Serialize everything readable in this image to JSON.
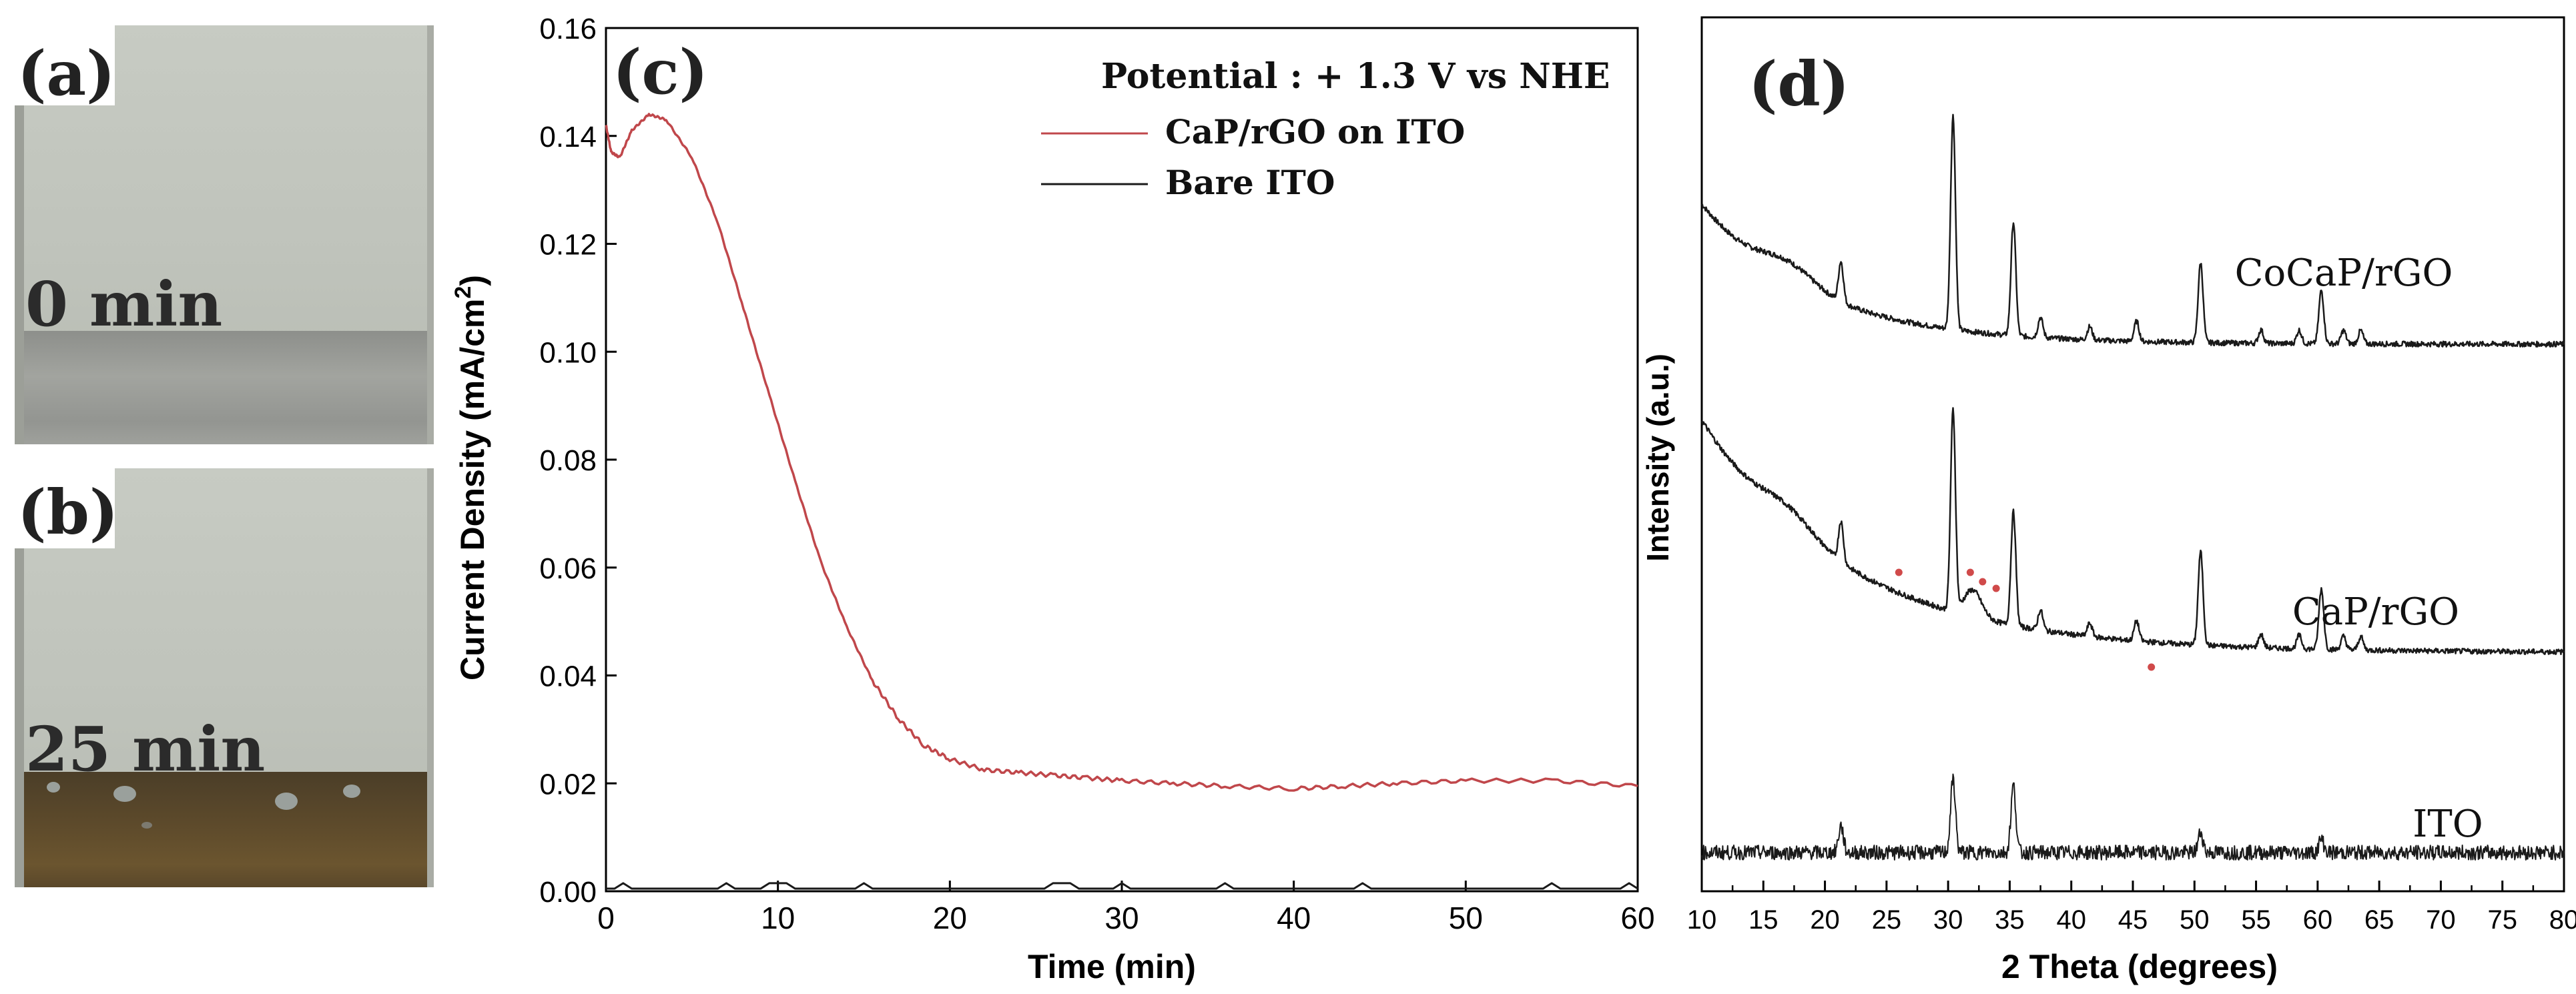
{
  "panels": {
    "a": {
      "label": "(a)",
      "time": "0 min"
    },
    "b": {
      "label": "(b)",
      "time": "25 min"
    },
    "c": {
      "label": "(c)"
    },
    "d": {
      "label": "(d)"
    }
  },
  "colors": {
    "cap_rgo_curve": "#c0474b",
    "bare_ito_curve": "#1a1a1a",
    "xrd_curve": "#1a1a1a",
    "marker": "#d04a4a",
    "axis": "#000000"
  },
  "chart_data": [
    {
      "type": "line",
      "title": "",
      "xlabel": "Time (min)",
      "ylabel": "Current Density (mA/cm²)",
      "ylabel_main": "Current Density (mA/cm",
      "ylabel_sup": "2",
      "ylabel_close": ")",
      "xlim": [
        0,
        60
      ],
      "ylim": [
        0,
        0.16
      ],
      "x_ticks": [
        0,
        10,
        20,
        30,
        40,
        50,
        60
      ],
      "x_tick_labels": [
        "0",
        "10",
        "20",
        "30",
        "40",
        "50",
        "60"
      ],
      "y_ticks": [
        0.0,
        0.02,
        0.04,
        0.06,
        0.08,
        0.1,
        0.12,
        0.14,
        0.16
      ],
      "y_tick_labels": [
        "0.00",
        "0.02",
        "0.04",
        "0.06",
        "0.08",
        "0.10",
        "0.12",
        "0.14",
        "0.16"
      ],
      "legend_title": "Potential : + 1.3 V vs NHE",
      "legend_position": "top-right",
      "series": [
        {
          "name": "CaP/rGO on ITO",
          "color": "#c0474b",
          "x": [
            0,
            0.3,
            0.8,
            1.5,
            2.5,
            3.5,
            5,
            6.5,
            8,
            9.5,
            11,
            12.5,
            14,
            15.5,
            17,
            18.5,
            20,
            22,
            24,
            26,
            28,
            30,
            33,
            36,
            40,
            43,
            46,
            50,
            55,
            60
          ],
          "y": [
            0.142,
            0.137,
            0.136,
            0.141,
            0.144,
            0.143,
            0.136,
            0.124,
            0.108,
            0.092,
            0.076,
            0.061,
            0.049,
            0.039,
            0.032,
            0.027,
            0.0245,
            0.0225,
            0.022,
            0.0215,
            0.021,
            0.0205,
            0.02,
            0.0195,
            0.019,
            0.0195,
            0.02,
            0.0205,
            0.0205,
            0.0195
          ]
        },
        {
          "name": "Bare ITO",
          "color": "#1a1a1a",
          "x": [
            0,
            0.5,
            1,
            1.5,
            6.5,
            7,
            7.5,
            9,
            9.5,
            10.5,
            11,
            14.5,
            15,
            15.5,
            25.5,
            26,
            27,
            27.5,
            29.5,
            30,
            30.5,
            35.5,
            36,
            36.5,
            43.5,
            44,
            44.5,
            54.5,
            55,
            55.5,
            59,
            59.5,
            60
          ],
          "y": [
            0.0005,
            0.0005,
            0.0015,
            0.0005,
            0.0005,
            0.0015,
            0.0005,
            0.0005,
            0.0015,
            0.0015,
            0.0005,
            0.0005,
            0.0015,
            0.0005,
            0.0005,
            0.0015,
            0.0015,
            0.0005,
            0.0005,
            0.0015,
            0.0005,
            0.0005,
            0.0015,
            0.0005,
            0.0005,
            0.0015,
            0.0005,
            0.0005,
            0.0015,
            0.0005,
            0.0005,
            0.0015,
            0.0005
          ]
        }
      ]
    },
    {
      "type": "line",
      "title": "",
      "xlabel": "2 Theta (degrees)",
      "ylabel": "Intensity (a.u.)",
      "xlim": [
        10,
        80
      ],
      "x_ticks": [
        10,
        15,
        20,
        25,
        30,
        35,
        40,
        45,
        50,
        55,
        60,
        65,
        70,
        75,
        80
      ],
      "x_tick_labels": [
        "10",
        "15",
        "20",
        "25",
        "30",
        "35",
        "40",
        "45",
        "50",
        "55",
        "60",
        "65",
        "70",
        "75",
        "80"
      ],
      "y_ticks_shown": false,
      "peaks_2theta": [
        21.3,
        30.4,
        35.3,
        37.5,
        41.5,
        45.3,
        50.5,
        55.4,
        58.5,
        60.3,
        62.1,
        63.5
      ],
      "impurity_markers_2theta": [
        26.0,
        31.8,
        32.8,
        33.9,
        46.5
      ],
      "series": [
        {
          "name": "CoCaP/rGO",
          "offset_rank": 3,
          "background": "decaying",
          "peak_heights": [
            0.06,
            0.32,
            0.17,
            0.03,
            0.02,
            0.03,
            0.12,
            0.02,
            0.02,
            0.08,
            0.02,
            0.02
          ]
        },
        {
          "name": "CaP/rGO",
          "offset_rank": 2,
          "background": "decaying",
          "peak_heights": [
            0.06,
            0.3,
            0.17,
            0.03,
            0.02,
            0.03,
            0.14,
            0.02,
            0.02,
            0.09,
            0.02,
            0.02
          ]
        },
        {
          "name": "ITO",
          "offset_rank": 1,
          "background": "flat-noisy",
          "peak_heights": [
            0.04,
            0.11,
            0.1,
            0,
            0,
            0,
            0.03,
            0,
            0,
            0.02,
            0,
            0
          ]
        }
      ]
    }
  ]
}
